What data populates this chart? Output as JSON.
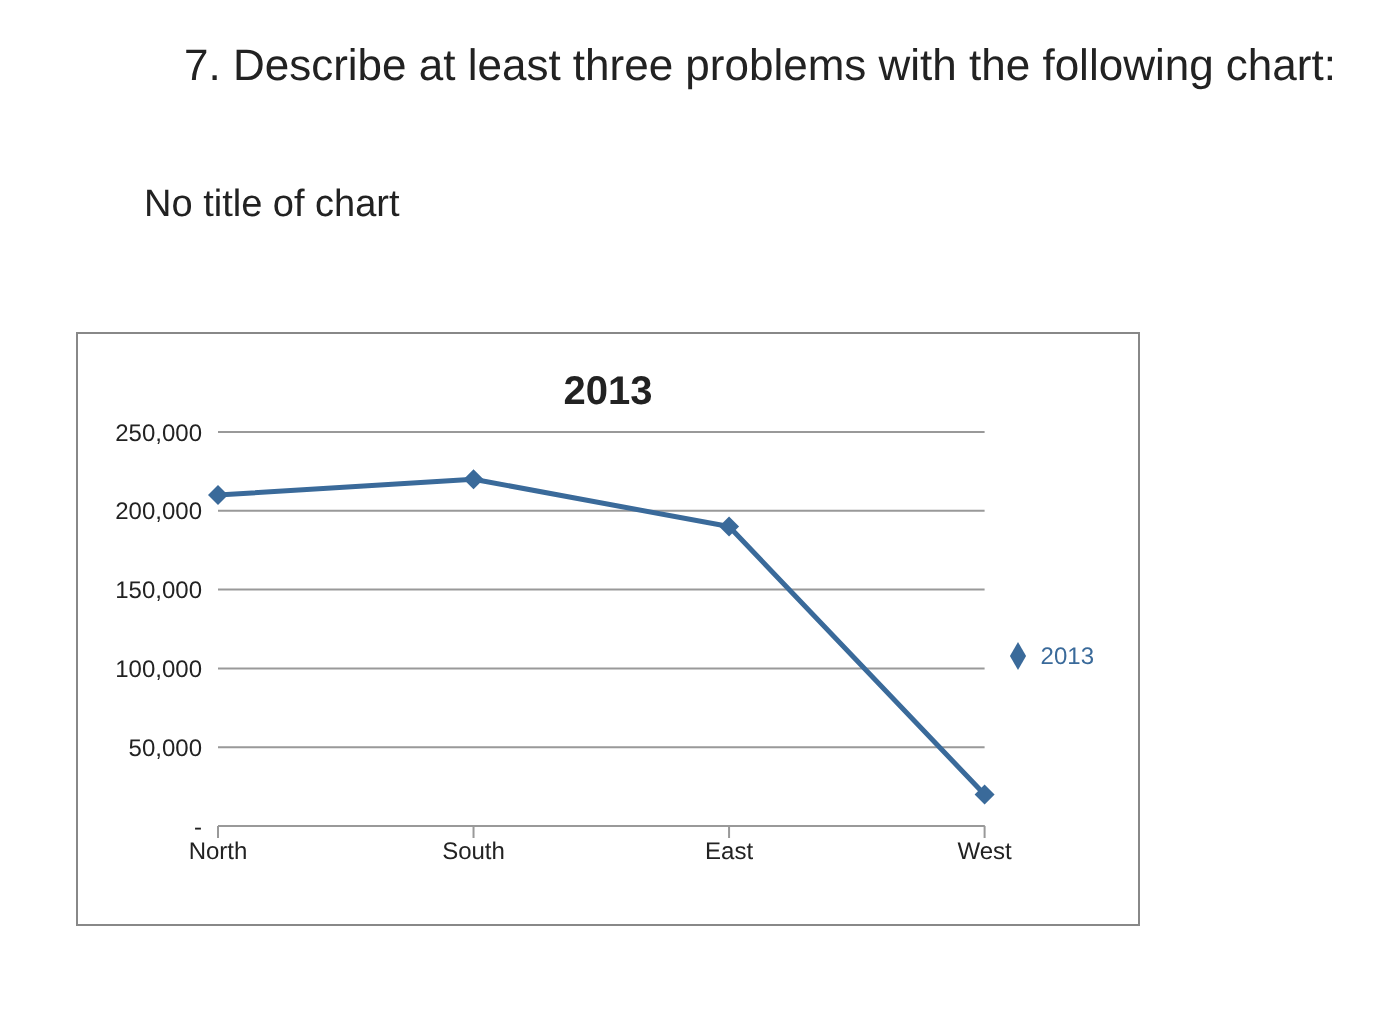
{
  "chart_data": {
    "type": "line",
    "title": "2013",
    "annotations": [
      "7. Describe at least three problems with the following chart:",
      "No title of chart"
    ],
    "categories": [
      "North",
      "South",
      "East",
      "West"
    ],
    "series": [
      {
        "name": "2013",
        "color": "#3a6a9a",
        "values": [
          210000,
          220000,
          190000,
          20000
        ]
      }
    ],
    "ylim": [
      0,
      250000
    ],
    "yticks": [
      {
        "value": 0,
        "label": "-"
      },
      {
        "value": 50000,
        "label": "50,000"
      },
      {
        "value": 100000,
        "label": "100,000"
      },
      {
        "value": 150000,
        "label": "150,000"
      },
      {
        "value": 200000,
        "label": "200,000"
      },
      {
        "value": 250000,
        "label": "250,000"
      }
    ],
    "grid": "y",
    "legend": "right",
    "marker": "diamond",
    "line_style": "solid"
  }
}
